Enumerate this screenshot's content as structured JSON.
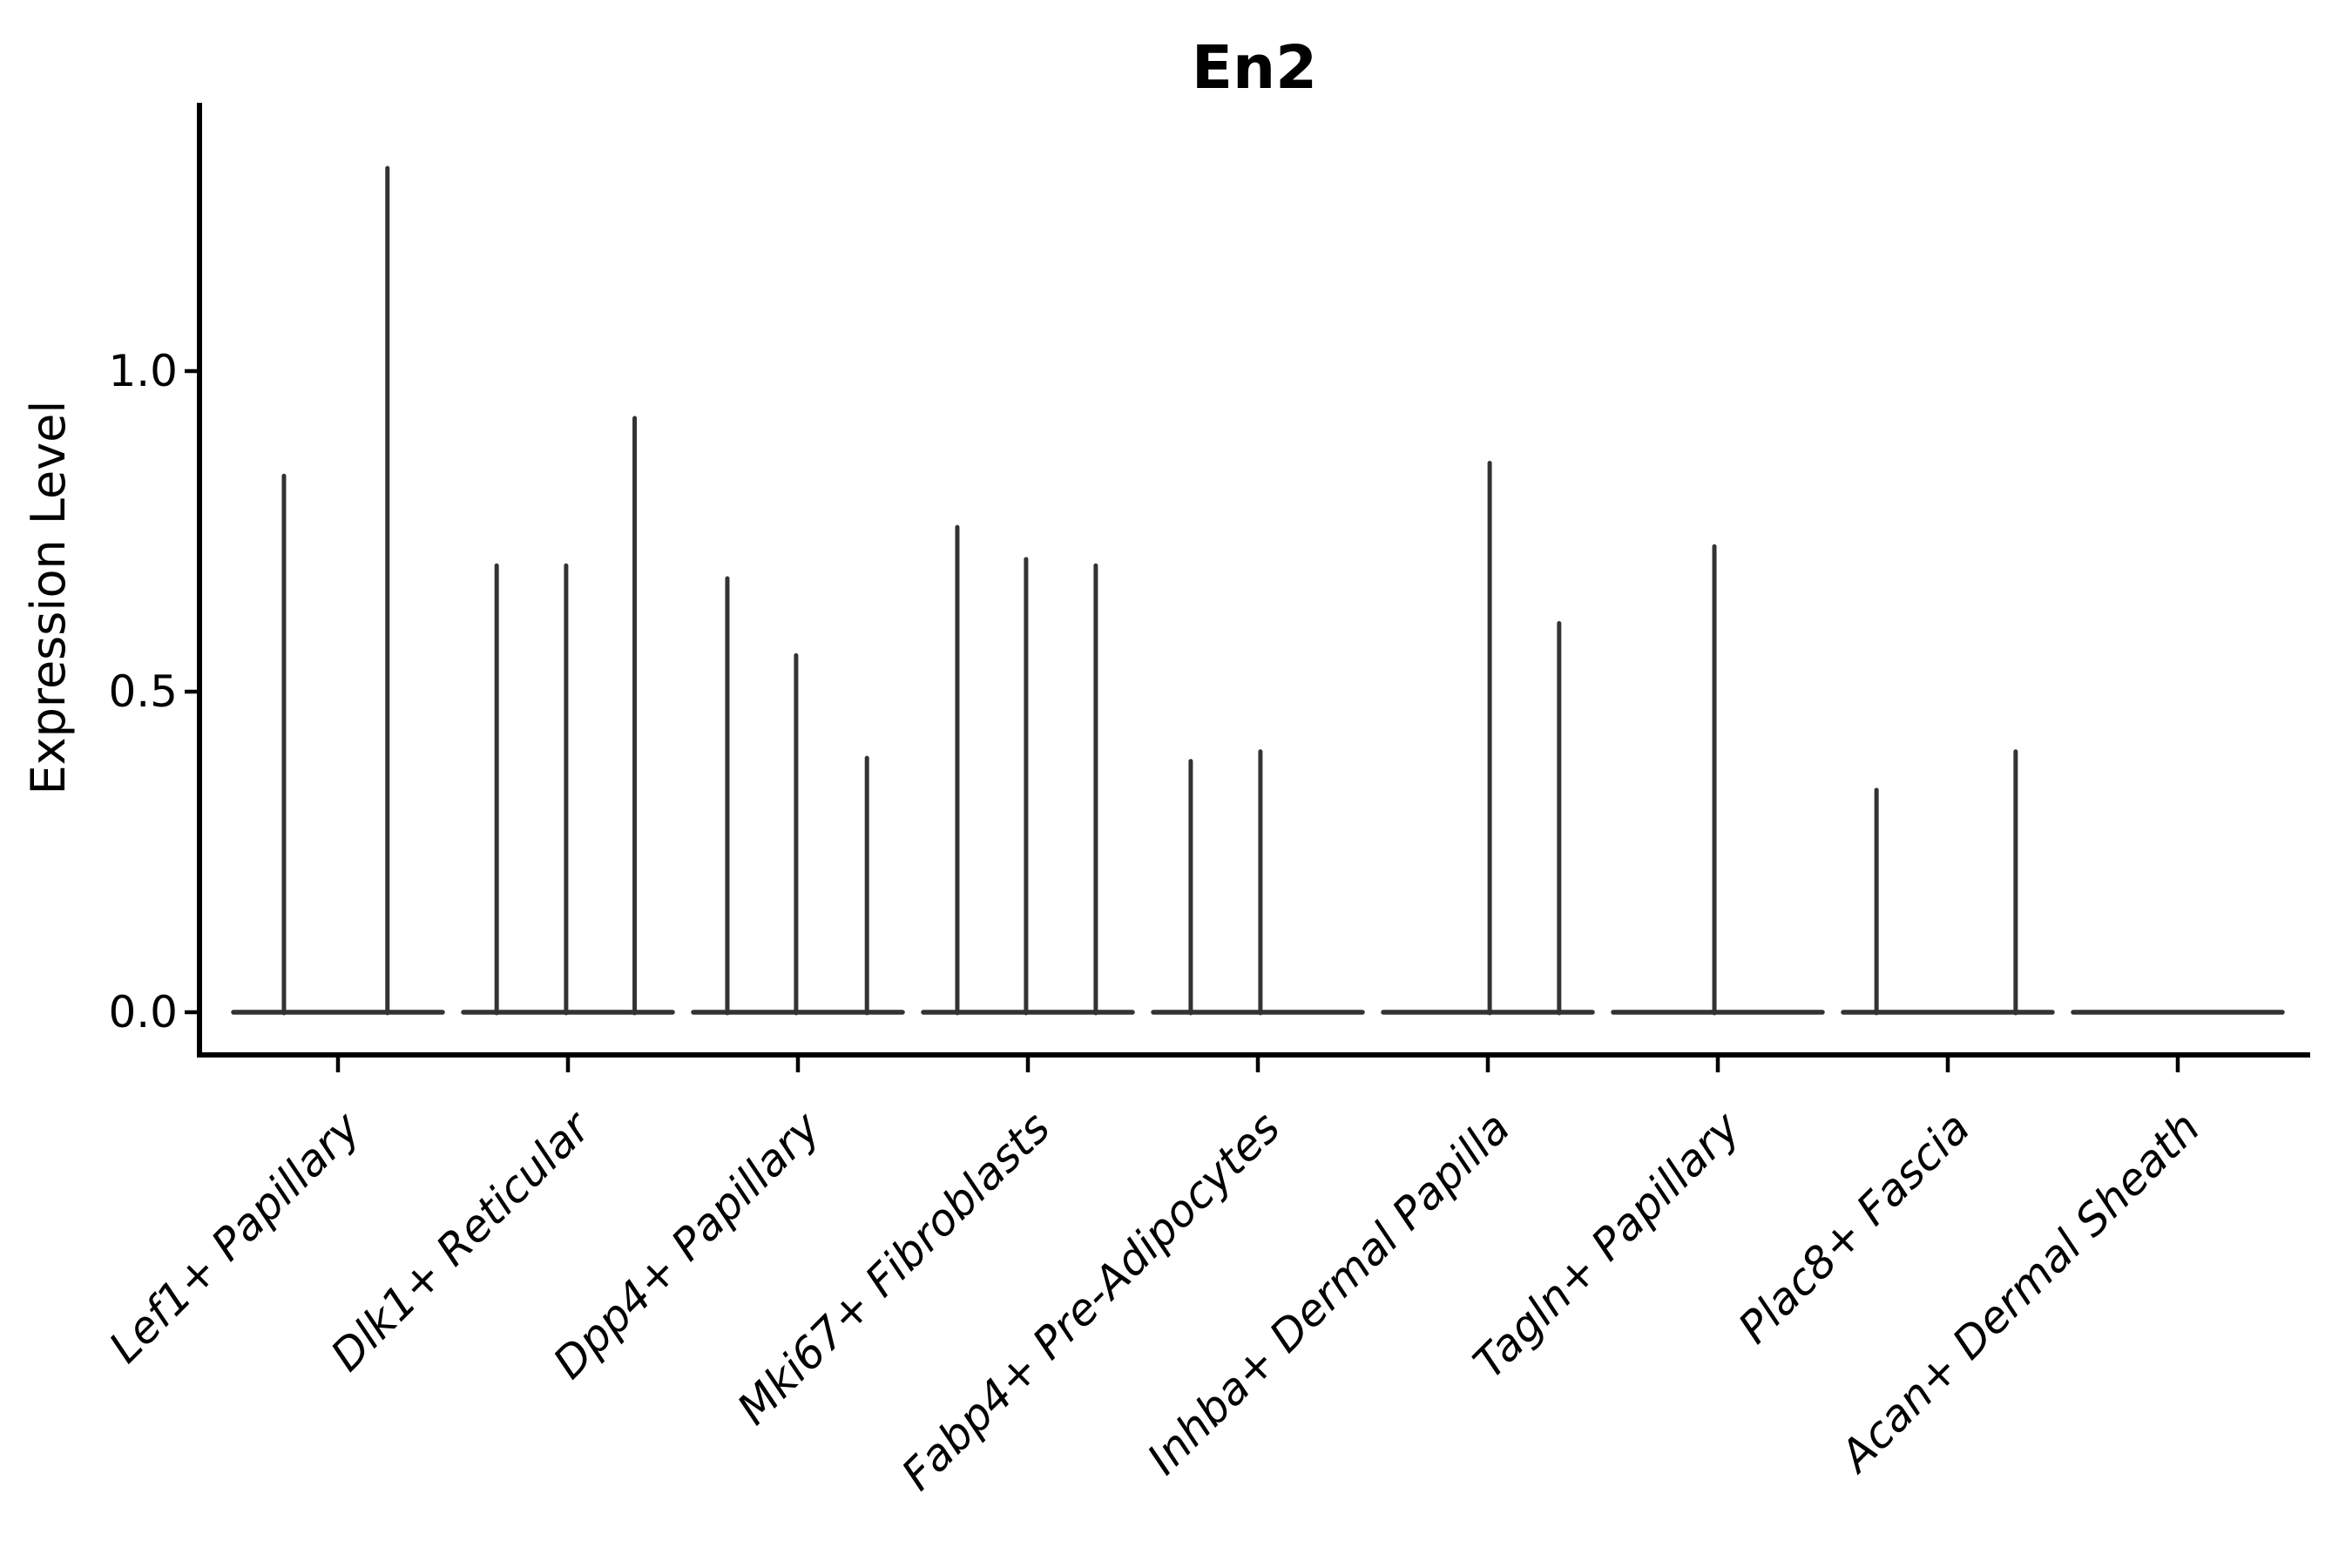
{
  "figure": {
    "background": "#ffffff",
    "spine_color": "#000000",
    "violin_color": "#333333",
    "text_color": "#000000"
  },
  "chart_data": {
    "type": "violin",
    "title": "En2",
    "xlabel": "",
    "ylabel": "Expression Level",
    "ytick_labels": [
      "0.0",
      "0.5",
      "1.0"
    ],
    "ytick_values": [
      0.0,
      0.5,
      1.0
    ],
    "ylim": [
      -0.067,
      1.419
    ],
    "grid": false,
    "legend_position": "none",
    "categories": [
      "Lef1+ Papillary",
      "Dlk1+ Reticular",
      "Dpp4+ Papillary",
      "Mki67+ Fibroblasts",
      "Fabp4+ Pre-Adipocytes",
      "Inhba+ Dermal Papilla",
      "Tagln+ Papillary",
      "Plac8+ Fascia",
      "Acan+ Dermal Sheath"
    ],
    "violin_halfwidth": 0.455,
    "baseline_value": 0.0,
    "violins": [
      {
        "category": "Lef1+ Papillary",
        "spikes": [
          {
            "offset": -0.235,
            "value": 0.84
          },
          {
            "offset": 0.215,
            "value": 1.32
          }
        ]
      },
      {
        "category": "Dlk1+ Reticular",
        "spikes": [
          {
            "offset": -0.31,
            "value": 0.7
          },
          {
            "offset": -0.008,
            "value": 0.7
          },
          {
            "offset": 0.29,
            "value": 0.93
          }
        ]
      },
      {
        "category": "Dpp4+ Papillary",
        "spikes": [
          {
            "offset": -0.307,
            "value": 0.68
          },
          {
            "offset": -0.008,
            "value": 0.56
          },
          {
            "offset": 0.3,
            "value": 0.4
          }
        ]
      },
      {
        "category": "Mki67+ Fibroblasts",
        "spikes": [
          {
            "offset": -0.307,
            "value": 0.76
          },
          {
            "offset": -0.008,
            "value": 0.71
          },
          {
            "offset": 0.295,
            "value": 0.7
          }
        ]
      },
      {
        "category": "Fabp4+ Pre-Adipocytes",
        "spikes": [
          {
            "offset": -0.292,
            "value": 0.395
          },
          {
            "offset": 0.011,
            "value": 0.41
          }
        ]
      },
      {
        "category": "Inhba+ Dermal Papilla",
        "spikes": [
          {
            "offset": 0.008,
            "value": 0.86
          },
          {
            "offset": 0.31,
            "value": 0.61
          }
        ]
      },
      {
        "category": "Tagln+ Papillary",
        "spikes": [
          {
            "offset": -0.015,
            "value": 0.73
          }
        ]
      },
      {
        "category": "Plac8+ Fascia",
        "spikes": [
          {
            "offset": -0.31,
            "value": 0.35
          },
          {
            "offset": 0.295,
            "value": 0.41
          }
        ]
      },
      {
        "category": "Acan+ Dermal Sheath",
        "spikes": []
      }
    ]
  }
}
